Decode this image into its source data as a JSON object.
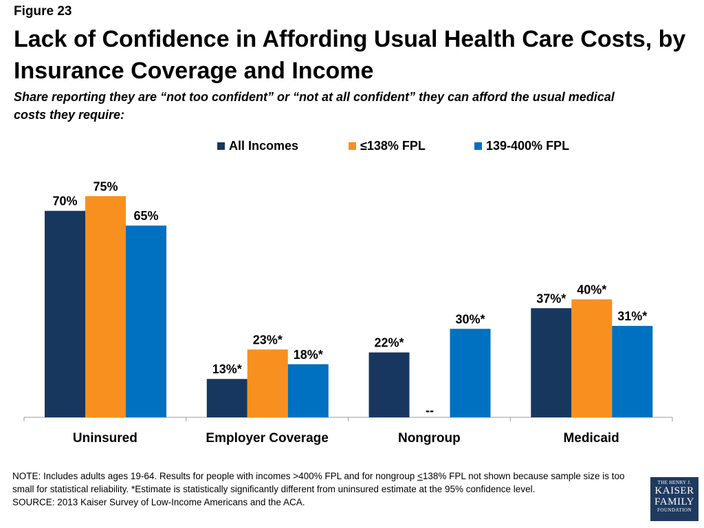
{
  "figure_label": "Figure 23",
  "title": "Lack of Confidence in Affording Usual Health Care Costs, by Insurance Coverage and  Income",
  "subtitle": "Share reporting they are “not too confident” or “not at all confident” they can afford the usual medical costs they require:",
  "legend": [
    {
      "label": "All Incomes",
      "color": "#17375e"
    },
    {
      "label": "≤138% FPL",
      "color": "#f7901e"
    },
    {
      "label": "139-400% FPL",
      "color": "#0070c0"
    }
  ],
  "chart_data": {
    "type": "bar",
    "categories": [
      "Uninsured",
      "Employer Coverage",
      "Nongroup",
      "Medicaid"
    ],
    "series": [
      {
        "name": "All Incomes",
        "color": "#17375e",
        "values": [
          70,
          13,
          22,
          37
        ],
        "labels": [
          "70%",
          "13%*",
          "22%*",
          "37%*"
        ]
      },
      {
        "name": "≤138% FPL",
        "color": "#f7901e",
        "values": [
          75,
          23,
          null,
          40
        ],
        "labels": [
          "75%",
          "23%*",
          "--",
          "40%*"
        ]
      },
      {
        "name": "139-400% FPL",
        "color": "#0070c0",
        "values": [
          65,
          18,
          30,
          31
        ],
        "labels": [
          "65%",
          "18%*",
          "30%*",
          "31%*"
        ]
      }
    ],
    "ylim": [
      0,
      100
    ],
    "grid": false,
    "legend_position": "top"
  },
  "note": {
    "part1": "NOTE: Includes adults ages 19-64. Results for people with incomes >400% FPL and for nongroup ",
    "underlined": "<",
    "part2": "138% FPL not shown because sample size is too small for statistical reliability. *Estimate is statistically significantly different from uninsured estimate at the 95% confidence level.",
    "source": "SOURCE: 2013 Kaiser Survey of Low-Income Americans and the ACA."
  },
  "logo": {
    "line1": "THE HENRY J.",
    "line2": "KAISER",
    "line3": "FAMILY",
    "line4": "FOUNDATION"
  }
}
